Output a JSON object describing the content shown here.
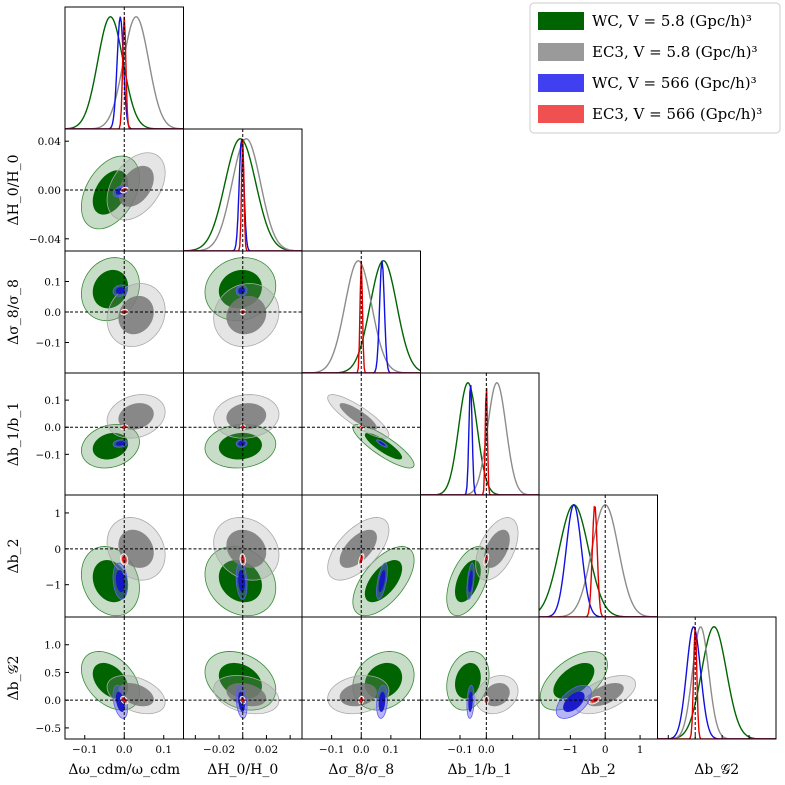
{
  "chart_data": {
    "type": "corner",
    "title": "",
    "parameters": [
      {
        "label": "Δω_cdm/ω_cdm",
        "range": [
          -0.15,
          0.15
        ],
        "ticks": [
          {
            "v": -0.1,
            "t": "−0.1"
          },
          {
            "v": 0.0,
            "t": "0.0"
          },
          {
            "v": 0.1,
            "t": "0.1"
          }
        ]
      },
      {
        "label": "ΔH_0/H_0",
        "range": [
          -0.05,
          0.05
        ],
        "ticks": [
          {
            "v": -0.02,
            "t": "−0.02"
          },
          {
            "v": 0.0,
            "t": "0.00"
          },
          {
            "v": 0.02,
            "t": "0.02"
          },
          {
            "v": 0.04,
            "t": "0.04"
          },
          {
            "v": -0.04,
            "t": "−0.04"
          }
        ]
      },
      {
        "label": "Δσ_8/σ_8",
        "range": [
          -0.2,
          0.2
        ],
        "ticks": [
          {
            "v": -0.1,
            "t": "−0.1"
          },
          {
            "v": 0.0,
            "t": "0.0"
          },
          {
            "v": 0.1,
            "t": "0.1"
          }
        ]
      },
      {
        "label": "Δb_1/b_1",
        "range": [
          -0.25,
          0.2
        ],
        "ticks": [
          {
            "v": -0.1,
            "t": "−0.1"
          },
          {
            "v": 0.0,
            "t": "0.0"
          },
          {
            "v": 0.1,
            "t": "0.1"
          }
        ]
      },
      {
        "label": "Δb_2",
        "range": [
          -1.9,
          1.5
        ],
        "ticks": [
          {
            "v": -1,
            "t": "−1"
          },
          {
            "v": 0,
            "t": "0"
          },
          {
            "v": 1,
            "t": "1"
          }
        ]
      },
      {
        "label": "Δb_𝒢2",
        "range": [
          -0.7,
          1.5
        ],
        "ticks": [
          {
            "v": -0.5,
            "t": "−0.5"
          },
          {
            "v": 0.0,
            "t": "0.0"
          },
          {
            "v": 0.5,
            "t": "0.5"
          },
          {
            "v": 1.0,
            "t": "1.0"
          }
        ]
      }
    ],
    "bottom_ticks": [
      [
        "−0.1",
        "0.0",
        "0.1"
      ],
      [
        "−0.02",
        "0.02"
      ],
      [
        "−0.1",
        "0.0",
        "0.1"
      ],
      [
        "−0.1",
        "0.0"
      ],
      [
        "−1",
        "0",
        "1"
      ],
      [
        "0",
        "1"
      ]
    ],
    "left_ticks": {
      "1": [
        "0.04",
        "0.00",
        "−0.04"
      ],
      "2": [
        "0.1",
        "0.0",
        "−0.1"
      ],
      "3": [
        "0.1",
        "0.0",
        "−0.1"
      ],
      "4": [
        "1",
        "0",
        "−1"
      ],
      "5": [
        "1.0",
        "0.5",
        "0.0",
        "−0.5"
      ]
    },
    "x_labels": [
      "Δω_cdm/ω_cdm",
      "ΔH_0/H_0",
      "Δσ_8/σ_8",
      "Δb_1/b_1",
      "Δb_2",
      "Δb_𝒢2"
    ],
    "y_labels": [
      "ΔH_0/H_0",
      "Δσ_8/σ_8",
      "Δb_1/b_1",
      "Δb_2",
      "Δb_𝒢2"
    ],
    "reference_lines": {
      "x": [
        0,
        0,
        0,
        0,
        0,
        0
      ],
      "style": "dashed"
    },
    "series": [
      {
        "name": "WC, V = 5.8 (Gpc/h)^3",
        "color": "#006400",
        "mean": [
          -0.035,
          -0.002,
          0.075,
          -0.07,
          -0.9,
          0.35
        ],
        "sigma": [
          0.032,
          0.013,
          0.045,
          0.035,
          0.42,
          0.23
        ]
      },
      {
        "name": "EC3, V = 5.8 (Gpc/h)^3",
        "color": "#8c8c8c",
        "mean": [
          0.03,
          0.003,
          -0.01,
          0.04,
          0.0,
          0.1
        ],
        "sigma": [
          0.032,
          0.012,
          0.045,
          0.035,
          0.38,
          0.15
        ]
      },
      {
        "name": "WC, V = 566 (Gpc/h)^3",
        "color": "#1010e0",
        "mean": [
          -0.01,
          -0.001,
          0.07,
          -0.06,
          -0.9,
          -0.03
        ],
        "sigma": [
          0.008,
          0.002,
          0.008,
          0.006,
          0.22,
          0.13
        ]
      },
      {
        "name": "EC3, V = 566 (Gpc/h)^3",
        "color": "#e00000",
        "mean": [
          0.0,
          0.0,
          0.0,
          0.0,
          -0.3,
          0.0
        ],
        "sigma": [
          0.004,
          0.001,
          0.004,
          0.004,
          0.07,
          0.03
        ]
      }
    ],
    "legend": {
      "placement": "top-right",
      "entries": [
        {
          "text": "WC, V = 5.8 (Gpc/h)³",
          "color": "#006400"
        },
        {
          "text": "EC3, V = 5.8 (Gpc/h)³",
          "color": "#9a9a9a"
        },
        {
          "text": "WC, V = 566 (Gpc/h)³",
          "color": "#4040f0"
        },
        {
          "text": "EC3, V = 566 (Gpc/h)³",
          "color": "#f05050"
        }
      ]
    }
  }
}
